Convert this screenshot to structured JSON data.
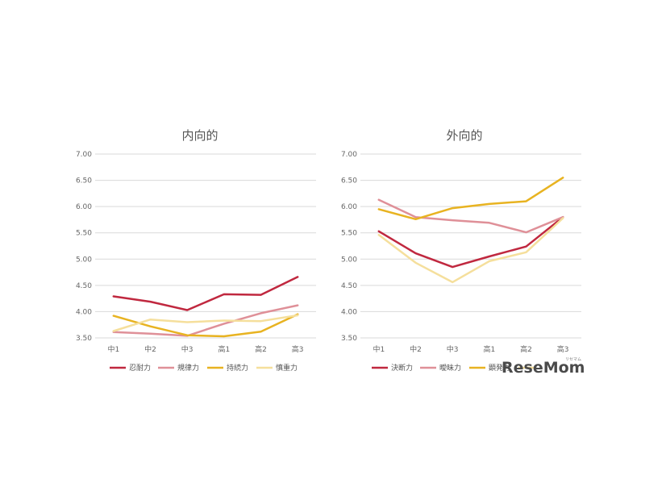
{
  "chart_data": [
    {
      "type": "line",
      "title": "内向的",
      "categories": [
        "中1",
        "中2",
        "中3",
        "高1",
        "高2",
        "高3"
      ],
      "ylim": [
        3.5,
        7.0
      ],
      "yticks": [
        "7.00",
        "6.50",
        "6.00",
        "5.50",
        "5.00",
        "4.50",
        "4.00",
        "3.50"
      ],
      "series": [
        {
          "name": "忍耐力",
          "color": "#c0283f",
          "values": [
            4.29,
            4.19,
            4.03,
            4.33,
            4.32,
            4.66
          ]
        },
        {
          "name": "規律力",
          "color": "#df9098",
          "values": [
            3.61,
            3.58,
            3.54,
            3.77,
            3.97,
            4.12
          ]
        },
        {
          "name": "持続力",
          "color": "#e8b321",
          "values": [
            3.92,
            3.72,
            3.55,
            3.53,
            3.62,
            3.95
          ]
        },
        {
          "name": "慎重力",
          "color": "#f5df9c",
          "values": [
            3.63,
            3.85,
            3.8,
            3.83,
            3.82,
            3.93
          ]
        }
      ]
    },
    {
      "type": "line",
      "title": "外向的",
      "categories": [
        "中1",
        "中2",
        "中3",
        "高1",
        "高2",
        "高3"
      ],
      "ylim": [
        3.5,
        7.0
      ],
      "yticks": [
        "7.00",
        "6.50",
        "6.00",
        "5.50",
        "5.00",
        "4.50",
        "4.00",
        "3.50"
      ],
      "series": [
        {
          "name": "決断力",
          "color": "#c0283f",
          "values": [
            5.53,
            5.11,
            4.85,
            5.05,
            5.24,
            5.8
          ]
        },
        {
          "name": "曖昧力",
          "color": "#df9098",
          "values": [
            6.13,
            5.8,
            5.74,
            5.69,
            5.51,
            5.8
          ]
        },
        {
          "name": "顕発力",
          "color": "#e8b321",
          "values": [
            5.95,
            5.76,
            5.97,
            6.05,
            6.1,
            6.55
          ]
        },
        {
          "name": "",
          "color": "#f5df9c",
          "values": [
            5.46,
            4.93,
            4.56,
            4.96,
            5.13,
            5.78
          ]
        }
      ]
    }
  ],
  "watermark": {
    "text": "ReseMom",
    "subtext": "リセマム"
  }
}
